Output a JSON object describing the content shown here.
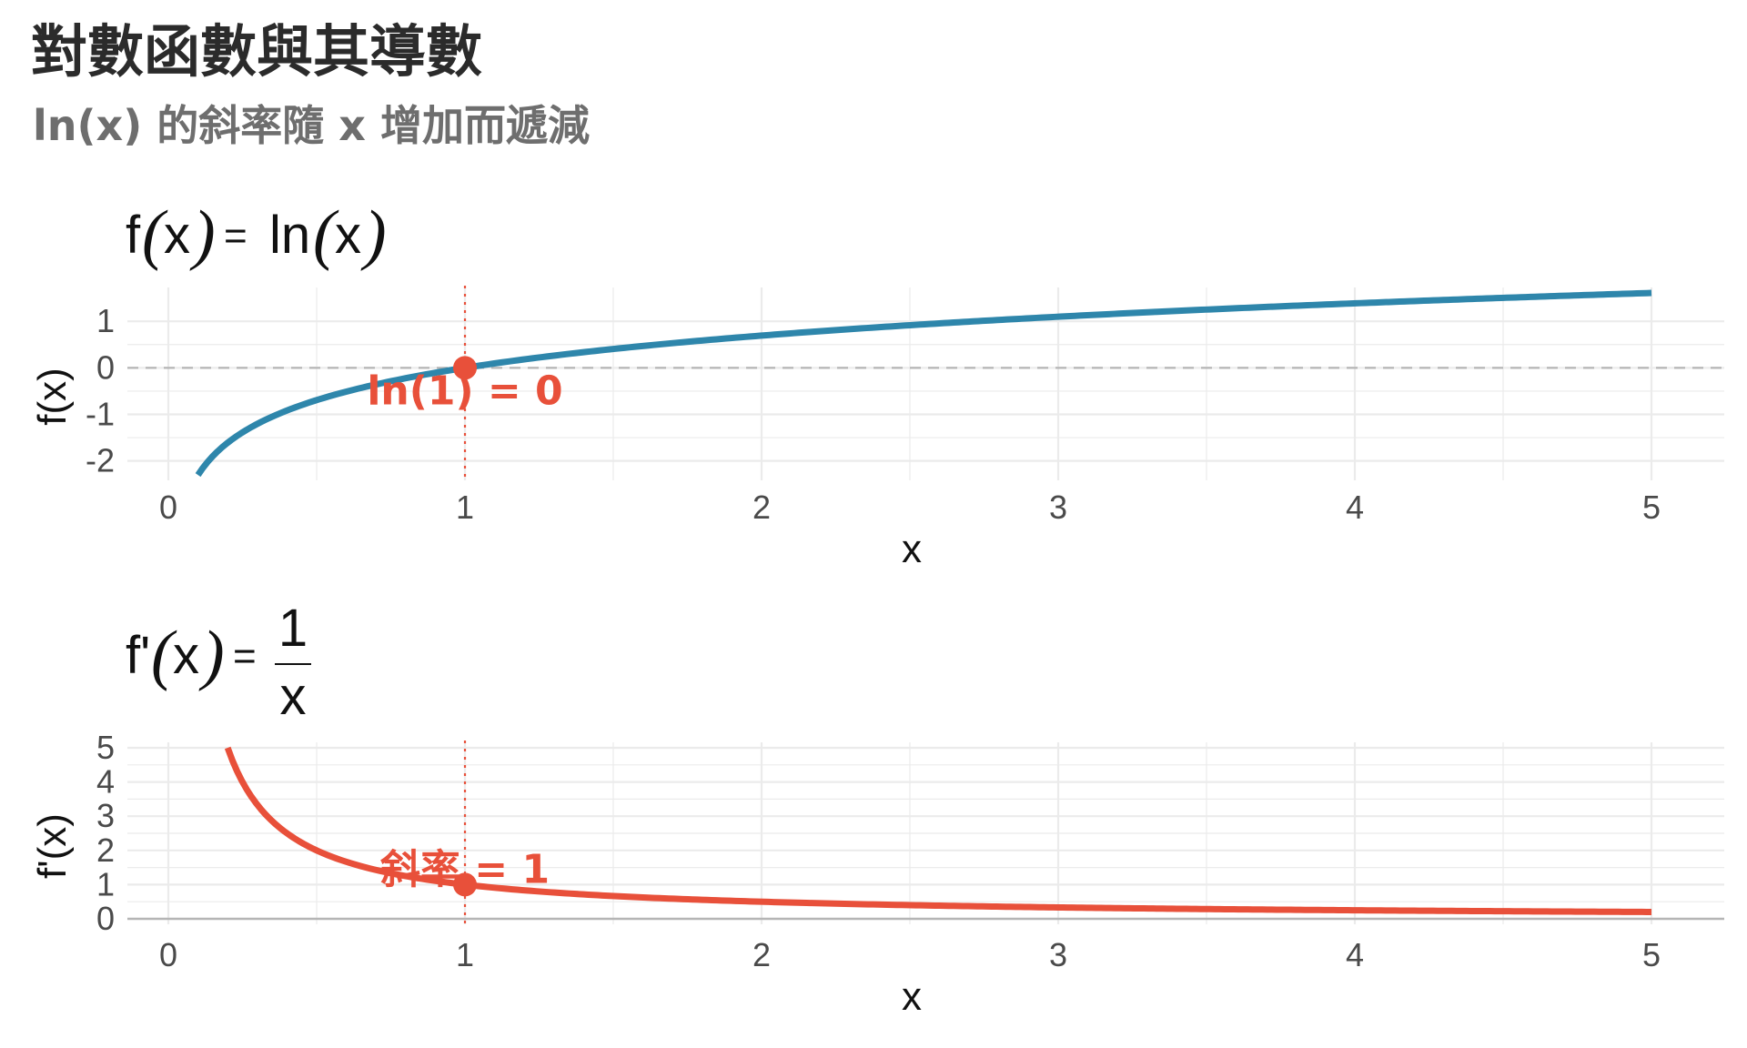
{
  "title": "對數函數與其導數",
  "subtitle": "ln(x) 的斜率隨 x 增加而遞減",
  "colors": {
    "log_curve": "#2e86ab",
    "deriv_curve": "#e8503a",
    "annotation": "#e8503a",
    "grid": "#ebebeb"
  },
  "chart_data": [
    {
      "type": "line",
      "formula": {
        "lhs": "f",
        "arg": "x",
        "func": "ln"
      },
      "xlabel": "x",
      "ylabel": "f(x)",
      "xlim": [
        0,
        5
      ],
      "ylim": [
        -2.3,
        1.61
      ],
      "xticks": [
        "0",
        "1",
        "2",
        "3",
        "4",
        "5"
      ],
      "yticks": [
        "1",
        "0",
        "-1",
        "-2"
      ],
      "grid": true,
      "reference_line": {
        "y": 0,
        "style": "dashed"
      },
      "vline": {
        "x": 1,
        "style": "dotted"
      },
      "series": [
        {
          "function": "ln(x)",
          "x_range": [
            0.1,
            5
          ],
          "x": [
            0.1,
            0.25,
            0.5,
            0.75,
            1,
            1.5,
            2,
            2.5,
            3,
            3.5,
            4,
            4.5,
            5
          ],
          "y": [
            -2.3,
            -1.39,
            -0.69,
            -0.29,
            0,
            0.41,
            0.69,
            0.92,
            1.1,
            1.25,
            1.39,
            1.5,
            1.61
          ]
        }
      ],
      "points": [
        {
          "x": 1,
          "y": 0,
          "label": "ln(1) = 0"
        }
      ]
    },
    {
      "type": "line",
      "formula": {
        "lhs": "f'",
        "arg": "x",
        "num": "1",
        "den": "x"
      },
      "xlabel": "x",
      "ylabel": "f'(x)",
      "xlim": [
        0,
        5
      ],
      "ylim": [
        0,
        5
      ],
      "xticks": [
        "0",
        "1",
        "2",
        "3",
        "4",
        "5"
      ],
      "yticks": [
        "5",
        "4",
        "3",
        "2",
        "1",
        "0"
      ],
      "grid": true,
      "vline": {
        "x": 1,
        "style": "dotted"
      },
      "series": [
        {
          "function": "1/x",
          "x_range": [
            0.2,
            5
          ],
          "x": [
            0.2,
            0.25,
            0.5,
            0.75,
            1,
            1.5,
            2,
            2.5,
            3,
            3.5,
            4,
            4.5,
            5
          ],
          "y": [
            5,
            4,
            2,
            1.33,
            1,
            0.67,
            0.5,
            0.4,
            0.33,
            0.29,
            0.25,
            0.22,
            0.2
          ]
        }
      ],
      "points": [
        {
          "x": 1,
          "y": 1,
          "label": "斜率 = 1"
        }
      ]
    }
  ]
}
